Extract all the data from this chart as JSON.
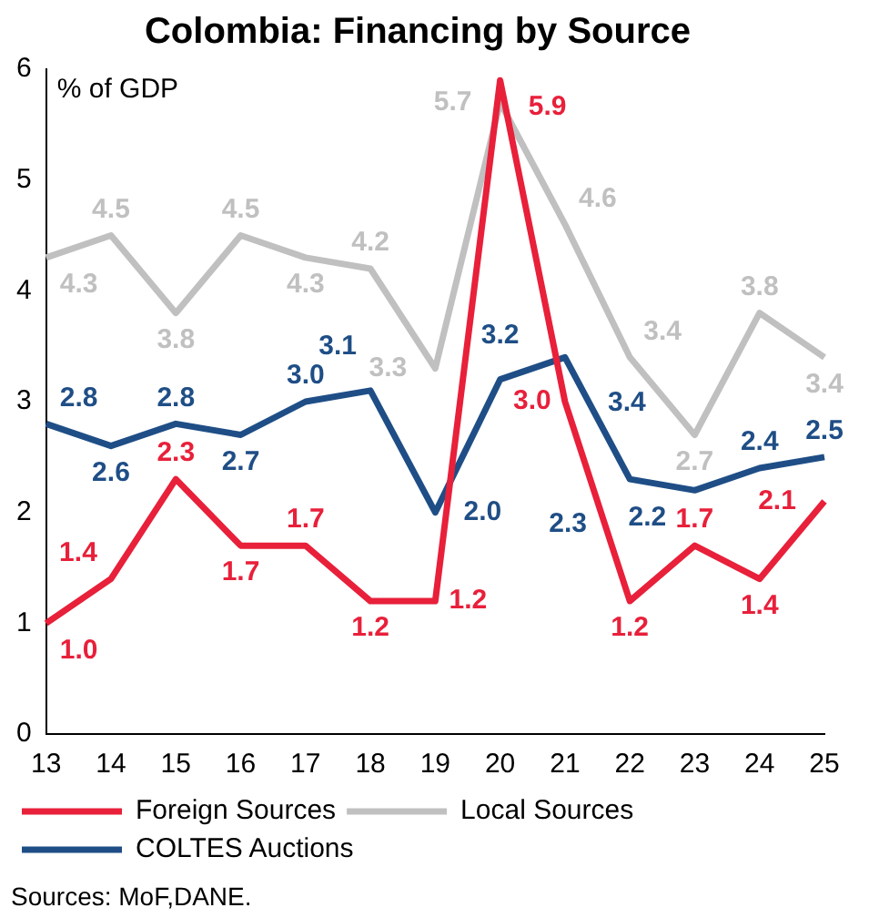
{
  "chart_data": {
    "type": "line",
    "title": "Colombia: Financing by Source",
    "ylabel": "% of GDP",
    "categories": [
      "13",
      "14",
      "15",
      "16",
      "17",
      "18",
      "19",
      "20",
      "21",
      "22",
      "23",
      "24",
      "25"
    ],
    "series": [
      {
        "name": "Foreign Sources",
        "color": "#e8203a",
        "values": [
          1.0,
          1.4,
          2.3,
          1.7,
          1.7,
          1.2,
          1.2,
          5.9,
          3.0,
          1.2,
          1.7,
          1.4,
          2.1
        ],
        "value_labels": [
          "1.0",
          "1.4",
          "2.3",
          "1.7",
          "1.7",
          "1.2",
          "1.2",
          "5.9",
          "3.0",
          "1.2",
          "1.7",
          "1.4",
          "2.1"
        ]
      },
      {
        "name": "Local Sources",
        "color": "#c0c0c0",
        "values": [
          4.3,
          4.5,
          3.8,
          4.5,
          4.3,
          4.2,
          3.3,
          5.7,
          4.6,
          3.4,
          2.7,
          3.8,
          3.4
        ],
        "value_labels": [
          "4.3",
          "4.5",
          "3.8",
          "4.5",
          "4.3",
          "4.2",
          "3.3",
          "5.7",
          "4.6",
          "3.4",
          "2.7",
          "3.8",
          "3.4"
        ]
      },
      {
        "name": "COLTES Auctions",
        "color": "#1f4e86",
        "values": [
          2.8,
          2.6,
          2.8,
          2.7,
          3.0,
          3.1,
          2.0,
          3.2,
          3.4,
          2.3,
          2.2,
          2.4,
          2.5
        ],
        "value_labels": [
          "2.8",
          "2.6",
          "2.8",
          "2.7",
          "3.0",
          "3.1",
          "2.0",
          "3.2",
          "3.4",
          "2.3",
          "2.2",
          "2.4",
          "2.5"
        ]
      }
    ],
    "ylim": [
      0,
      6
    ],
    "yticks": [
      0,
      1,
      2,
      3,
      4,
      5,
      6
    ],
    "grid": false,
    "legend": "bottom",
    "data_labels": true,
    "marker": "none",
    "line_style": "solid",
    "annotations": [
      "Sources: MoF,DANE."
    ]
  }
}
